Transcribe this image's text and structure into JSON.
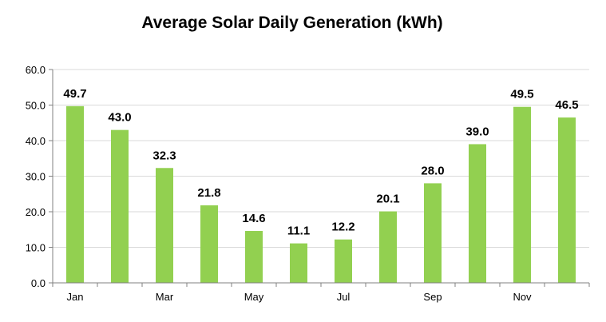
{
  "colors": {
    "bar": "#92d050",
    "gridline": "#d9d9d9",
    "axis": "#808080",
    "text": "#000000"
  },
  "chart_data": {
    "type": "bar",
    "title": "Average Solar Daily Generation (kWh)",
    "xlabel": "",
    "ylabel": "",
    "categories": [
      "Jan",
      "Feb",
      "Mar",
      "Apr",
      "May",
      "Jun",
      "Jul",
      "Aug",
      "Sep",
      "Oct",
      "Nov",
      "Dec"
    ],
    "category_labels_shown": [
      "Jan",
      "",
      "Mar",
      "",
      "May",
      "",
      "Jul",
      "",
      "Sep",
      "",
      "Nov",
      ""
    ],
    "values": [
      49.7,
      43.0,
      32.3,
      21.8,
      14.6,
      11.1,
      12.2,
      20.1,
      28.0,
      39.0,
      49.5,
      46.5
    ],
    "data_labels": [
      "49.7",
      "43.0",
      "32.3",
      "21.8",
      "14.6",
      "11.1",
      "12.2",
      "20.1",
      "28.0",
      "39.0",
      "49.5",
      "46.5"
    ],
    "ylim": [
      0,
      60
    ],
    "yticks": [
      0,
      10,
      20,
      30,
      40,
      50,
      60
    ],
    "ytick_labels": [
      "0.0",
      "10.0",
      "20.0",
      "30.0",
      "40.0",
      "50.0",
      "60.0"
    ],
    "grid": true,
    "legend": "none"
  }
}
